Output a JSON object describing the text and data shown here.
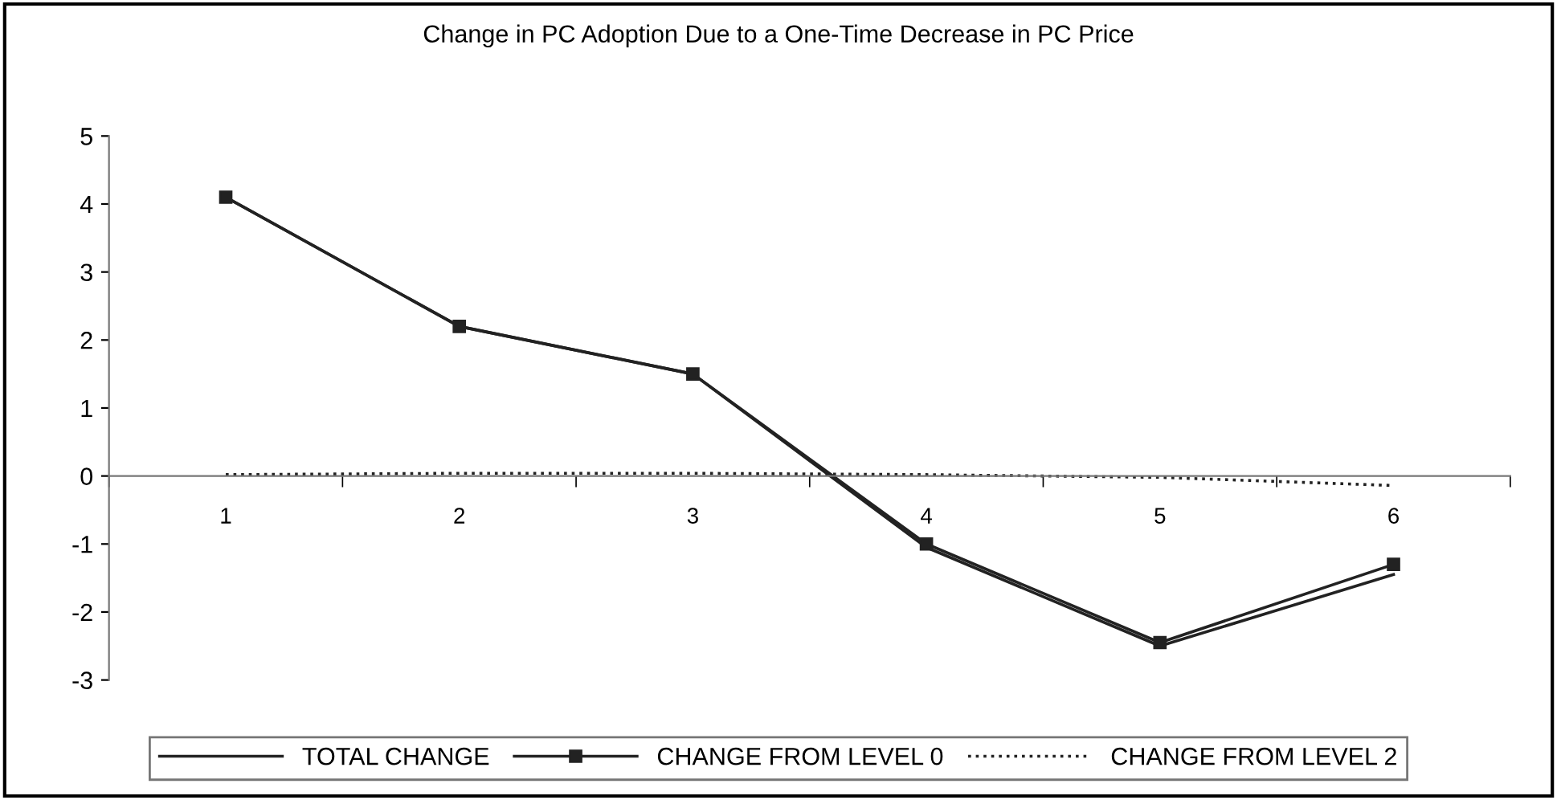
{
  "chart_data": {
    "type": "line",
    "title": "Change in PC Adoption Due to a One-Time Decrease in PC Price",
    "categories": [
      "1",
      "2",
      "3",
      "4",
      "5",
      "6"
    ],
    "series": [
      {
        "name": "TOTAL CHANGE",
        "color": "#222222",
        "values": [
          4.1,
          2.2,
          1.5,
          -1.05,
          -2.5,
          -1.45
        ],
        "line_style": "solid"
      },
      {
        "name": "CHANGE FROM LEVEL 0",
        "color": "#222222",
        "values": [
          4.1,
          2.2,
          1.5,
          -1.0,
          -2.45,
          -1.3
        ],
        "marker": "square",
        "line_style": "solid"
      },
      {
        "name": "CHANGE FROM LEVEL 2",
        "color": "#222222",
        "values": [
          0.02,
          0.04,
          0.04,
          0.02,
          -0.02,
          -0.14
        ],
        "marker": "none",
        "line_style": "dotted"
      }
    ],
    "ylim": [
      -3,
      5
    ],
    "yticks": [
      -3,
      -2,
      -1,
      0,
      1,
      2,
      3,
      4,
      5
    ],
    "grid": false,
    "legend": "bottom"
  }
}
